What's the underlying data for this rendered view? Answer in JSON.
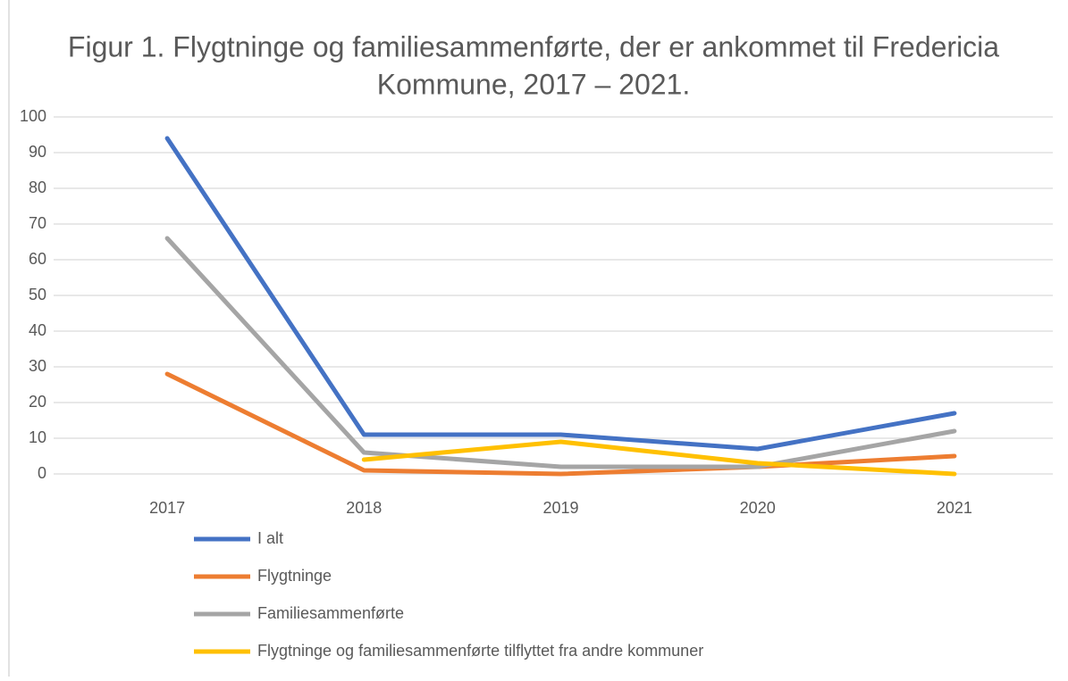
{
  "chart_data": {
    "type": "line",
    "title": [
      "Figur 1. Flygtninge og familiesammenførte, der er ankommet til Fredericia",
      "Kommune, 2017 – 2021."
    ],
    "categories": [
      "2017",
      "2018",
      "2019",
      "2020",
      "2021"
    ],
    "series": [
      {
        "name": "I alt",
        "color": "#4472c4",
        "values": [
          94,
          11,
          11,
          7,
          17
        ]
      },
      {
        "name": "Flygtninge",
        "color": "#ed7d31",
        "values": [
          28,
          1,
          0,
          2,
          5
        ]
      },
      {
        "name": "Familiesammenførte",
        "color": "#a5a5a5",
        "values": [
          66,
          6,
          2,
          2,
          12
        ]
      },
      {
        "name": "Flygtninge og familiesammenførte tilflyttet fra andre kommuner",
        "color": "#ffc000",
        "values": [
          null,
          4,
          9,
          3,
          0
        ]
      }
    ],
    "ylim": [
      0,
      100
    ],
    "yticks": [
      0,
      10,
      20,
      30,
      40,
      50,
      60,
      70,
      80,
      90,
      100
    ],
    "grid": true,
    "legend": "bottom"
  }
}
